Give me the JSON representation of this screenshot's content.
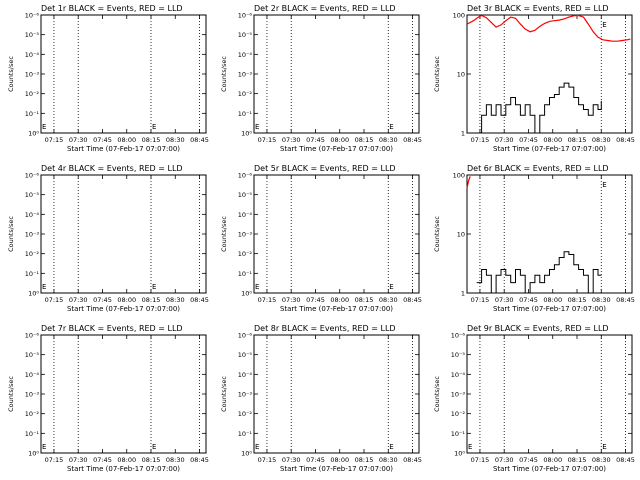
{
  "chart_data": [
    {
      "type": "line",
      "title": "Det 1r BLACK = Events, RED = LLD",
      "xlabel": "Start Time (07-Feb-17 07:07:00)",
      "ylabel": "Counts/sec",
      "yscale": "log",
      "xlim": [
        "07:07",
        "08:49"
      ],
      "ylim": [
        1,
        1e-06
      ],
      "xticks": [
        "07:15",
        "07:30",
        "07:45",
        "08:00",
        "08:15",
        "08:30",
        "08:45"
      ],
      "yticks": [
        "10⁰",
        "10⁻¹",
        "10⁻²",
        "10⁻³",
        "10⁻⁴",
        "10⁻⁵",
        "10⁻⁶"
      ],
      "dotted_lines": [
        "07:15",
        "07:30",
        "08:15",
        "08:45"
      ],
      "markers": [
        {
          "x": "07:07",
          "label": "E"
        },
        {
          "x": "08:15",
          "label": "E"
        }
      ],
      "series": []
    },
    {
      "type": "line",
      "title": "Det 2r BLACK = Events, RED = LLD",
      "xlabel": "Start Time (07-Feb-17 07:07:00)",
      "ylabel": "Counts/sec",
      "yscale": "log",
      "xlim": [
        "07:07",
        "08:49"
      ],
      "ylim": [
        1,
        1e-06
      ],
      "xticks": [
        "07:15",
        "07:30",
        "07:45",
        "08:00",
        "08:15",
        "08:30",
        "08:45"
      ],
      "yticks": [
        "10⁰",
        "10⁻¹",
        "10⁻²",
        "10⁻³",
        "10⁻⁴",
        "10⁻⁵",
        "10⁻⁶"
      ],
      "dotted_lines": [
        "07:15",
        "07:30",
        "08:30",
        "08:45"
      ],
      "markers": [
        {
          "x": "07:07",
          "label": "E"
        },
        {
          "x": "08:30",
          "label": "E"
        }
      ],
      "series": []
    },
    {
      "type": "line",
      "title": "Det 3r BLACK = Events, RED = LLD",
      "xlabel": "Start Time (07-Feb-17 07:07:00)",
      "ylabel": "Counts/sec",
      "yscale": "log",
      "xlim": [
        "07:07",
        "08:49"
      ],
      "ylim": [
        1,
        100
      ],
      "xticks": [
        "07:15",
        "07:30",
        "07:45",
        "08:00",
        "08:15",
        "08:30",
        "08:45"
      ],
      "yticks": [
        "1",
        "10",
        "100"
      ],
      "dotted_lines": [
        "07:15",
        "07:30",
        "08:30",
        "08:45"
      ],
      "markers": [
        {
          "x": "08:30",
          "label": "E"
        }
      ],
      "series": [
        {
          "color": "#ff0000",
          "style": "line",
          "points": [
            [
              "07:07",
              70
            ],
            [
              "07:11",
              80
            ],
            [
              "07:14",
              92
            ],
            [
              "07:16",
              98
            ],
            [
              "07:19",
              90
            ],
            [
              "07:22",
              75
            ],
            [
              "07:25",
              62
            ],
            [
              "07:28",
              68
            ],
            [
              "07:31",
              80
            ],
            [
              "07:34",
              92
            ],
            [
              "07:37",
              88
            ],
            [
              "07:40",
              70
            ],
            [
              "07:43",
              58
            ],
            [
              "07:46",
              52
            ],
            [
              "07:49",
              55
            ],
            [
              "07:52",
              64
            ],
            [
              "07:55",
              72
            ],
            [
              "07:58",
              78
            ],
            [
              "08:01",
              80
            ],
            [
              "08:04",
              82
            ],
            [
              "08:07",
              86
            ],
            [
              "08:10",
              92
            ],
            [
              "08:13",
              97
            ],
            [
              "08:16",
              98
            ],
            [
              "08:19",
              92
            ],
            [
              "08:22",
              70
            ],
            [
              "08:25",
              52
            ],
            [
              "08:28",
              42
            ],
            [
              "08:31",
              38
            ],
            [
              "08:34",
              37
            ],
            [
              "08:37",
              36
            ],
            [
              "08:40",
              36
            ],
            [
              "08:43",
              37
            ],
            [
              "08:46",
              38
            ],
            [
              "08:48",
              39
            ]
          ]
        },
        {
          "color": "#000000",
          "style": "step",
          "points": [
            [
              "07:13",
              1
            ],
            [
              "07:16",
              2
            ],
            [
              "07:19",
              3
            ],
            [
              "07:22",
              2
            ],
            [
              "07:25",
              3
            ],
            [
              "07:28",
              2
            ],
            [
              "07:31",
              3
            ],
            [
              "07:34",
              4
            ],
            [
              "07:37",
              3
            ],
            [
              "07:40",
              2
            ],
            [
              "07:43",
              3
            ],
            [
              "07:46",
              2
            ],
            [
              "07:49",
              1
            ],
            [
              "07:52",
              2
            ],
            [
              "07:55",
              3
            ],
            [
              "07:58",
              4
            ],
            [
              "08:01",
              4.5
            ],
            [
              "08:04",
              6
            ],
            [
              "08:07",
              7
            ],
            [
              "08:10",
              6
            ],
            [
              "08:13",
              4
            ],
            [
              "08:16",
              3
            ],
            [
              "08:19",
              2.5
            ],
            [
              "08:22",
              2
            ],
            [
              "08:25",
              3
            ],
            [
              "08:28",
              2.5
            ],
            [
              "08:30",
              3.5
            ]
          ]
        }
      ]
    },
    {
      "type": "line",
      "title": "Det 4r BLACK = Events, RED = LLD",
      "xlabel": "Start Time (07-Feb-17 07:07:00)",
      "ylabel": "Counts/sec",
      "yscale": "log",
      "xlim": [
        "07:07",
        "08:49"
      ],
      "ylim": [
        1,
        1e-06
      ],
      "xticks": [
        "07:15",
        "07:30",
        "07:45",
        "08:00",
        "08:15",
        "08:30",
        "08:45"
      ],
      "yticks": [
        "10⁰",
        "10⁻¹",
        "10⁻²",
        "10⁻³",
        "10⁻⁴",
        "10⁻⁵",
        "10⁻⁶"
      ],
      "dotted_lines": [
        "07:15",
        "07:30",
        "08:15",
        "08:45"
      ],
      "markers": [
        {
          "x": "07:07",
          "label": "E"
        },
        {
          "x": "08:15",
          "label": "E"
        }
      ],
      "series": []
    },
    {
      "type": "line",
      "title": "Det 5r BLACK = Events, RED = LLD",
      "xlabel": "Start Time (07-Feb-17 07:07:00)",
      "ylabel": "Counts/sec",
      "yscale": "log",
      "xlim": [
        "07:07",
        "08:49"
      ],
      "ylim": [
        1,
        1e-06
      ],
      "xticks": [
        "07:15",
        "07:30",
        "07:45",
        "08:00",
        "08:15",
        "08:30",
        "08:45"
      ],
      "yticks": [
        "10⁰",
        "10⁻¹",
        "10⁻²",
        "10⁻³",
        "10⁻⁴",
        "10⁻⁵",
        "10⁻⁶"
      ],
      "dotted_lines": [
        "07:15",
        "07:30",
        "08:30",
        "08:45"
      ],
      "markers": [
        {
          "x": "07:07",
          "label": "E"
        },
        {
          "x": "08:30",
          "label": "E"
        }
      ],
      "series": []
    },
    {
      "type": "line",
      "title": "Det 6r BLACK = Events, RED = LLD",
      "xlabel": "Start Time (07-Feb-17 07:07:00)",
      "ylabel": "Counts/sec",
      "yscale": "log",
      "xlim": [
        "07:07",
        "08:49"
      ],
      "ylim": [
        1,
        100
      ],
      "xticks": [
        "07:15",
        "07:30",
        "07:45",
        "08:00",
        "08:15",
        "08:30",
        "08:45"
      ],
      "yticks": [
        "1",
        "10",
        "100"
      ],
      "dotted_lines": [
        "07:15",
        "07:30",
        "08:30",
        "08:45"
      ],
      "markers": [
        {
          "x": "08:30",
          "label": "E"
        }
      ],
      "series": [
        {
          "color": "#ff0000",
          "style": "line",
          "points": [
            [
              "07:07",
              60
            ],
            [
              "07:08",
              80
            ],
            [
              "07:09",
              95
            ]
          ]
        },
        {
          "color": "#000000",
          "style": "step",
          "points": [
            [
              "07:13",
              1.5
            ],
            [
              "07:16",
              2.5
            ],
            [
              "07:19",
              2
            ],
            [
              "07:22",
              1
            ],
            [
              "07:25",
              2
            ],
            [
              "07:28",
              2.5
            ],
            [
              "07:31",
              2
            ],
            [
              "07:34",
              1.5
            ],
            [
              "07:37",
              2.5
            ],
            [
              "07:40",
              2
            ],
            [
              "07:43",
              1
            ],
            [
              "07:46",
              1.5
            ],
            [
              "07:49",
              2
            ],
            [
              "07:52",
              1.5
            ],
            [
              "07:55",
              2
            ],
            [
              "07:58",
              2.5
            ],
            [
              "08:01",
              3
            ],
            [
              "08:04",
              4
            ],
            [
              "08:07",
              5
            ],
            [
              "08:10",
              4.5
            ],
            [
              "08:13",
              3
            ],
            [
              "08:16",
              2.5
            ],
            [
              "08:19",
              2
            ],
            [
              "08:22",
              1
            ],
            [
              "08:25",
              2.5
            ],
            [
              "08:28",
              2
            ],
            [
              "08:30",
              2
            ]
          ]
        }
      ]
    },
    {
      "type": "line",
      "title": "Det 7r BLACK = Events, RED = LLD",
      "xlabel": "Start Time (07-Feb-17 07:07:00)",
      "ylabel": "Counts/sec",
      "yscale": "log",
      "xlim": [
        "07:07",
        "08:49"
      ],
      "ylim": [
        1,
        1e-06
      ],
      "xticks": [
        "07:15",
        "07:30",
        "07:45",
        "08:00",
        "08:15",
        "08:30",
        "08:45"
      ],
      "yticks": [
        "10⁰",
        "10⁻¹",
        "10⁻²",
        "10⁻³",
        "10⁻⁴",
        "10⁻⁵",
        "10⁻⁶"
      ],
      "dotted_lines": [
        "07:15",
        "07:30",
        "08:15",
        "08:45"
      ],
      "markers": [
        {
          "x": "07:07",
          "label": "E"
        },
        {
          "x": "08:15",
          "label": "E"
        }
      ],
      "series": []
    },
    {
      "type": "line",
      "title": "Det 8r BLACK = Events, RED = LLD",
      "xlabel": "Start Time (07-Feb-17 07:07:00)",
      "ylabel": "Counts/sec",
      "yscale": "log",
      "xlim": [
        "07:07",
        "08:49"
      ],
      "ylim": [
        1,
        1e-06
      ],
      "xticks": [
        "07:15",
        "07:30",
        "07:45",
        "08:00",
        "08:15",
        "08:30",
        "08:45"
      ],
      "yticks": [
        "10⁰",
        "10⁻¹",
        "10⁻²",
        "10⁻³",
        "10⁻⁴",
        "10⁻⁵",
        "10⁻⁶"
      ],
      "dotted_lines": [
        "07:15",
        "07:30",
        "08:30",
        "08:45"
      ],
      "markers": [
        {
          "x": "07:07",
          "label": "E"
        },
        {
          "x": "08:30",
          "label": "E"
        }
      ],
      "series": []
    },
    {
      "type": "line",
      "title": "Det 9r BLACK = Events, RED = LLD",
      "xlabel": "Start Time (07-Feb-17 07:07:00)",
      "ylabel": "Counts/sec",
      "yscale": "log",
      "xlim": [
        "07:07",
        "08:49"
      ],
      "ylim": [
        1,
        1e-06
      ],
      "xticks": [
        "07:15",
        "07:30",
        "07:45",
        "08:00",
        "08:15",
        "08:30",
        "08:45"
      ],
      "yticks": [
        "10⁰",
        "10⁻¹",
        "10⁻²",
        "10⁻³",
        "10⁻⁴",
        "10⁻⁵",
        "10⁻⁶"
      ],
      "dotted_lines": [
        "07:15",
        "07:30",
        "08:30",
        "08:45"
      ],
      "markers": [
        {
          "x": "07:07",
          "label": "E"
        },
        {
          "x": "08:30",
          "label": "E"
        }
      ],
      "series": []
    }
  ]
}
